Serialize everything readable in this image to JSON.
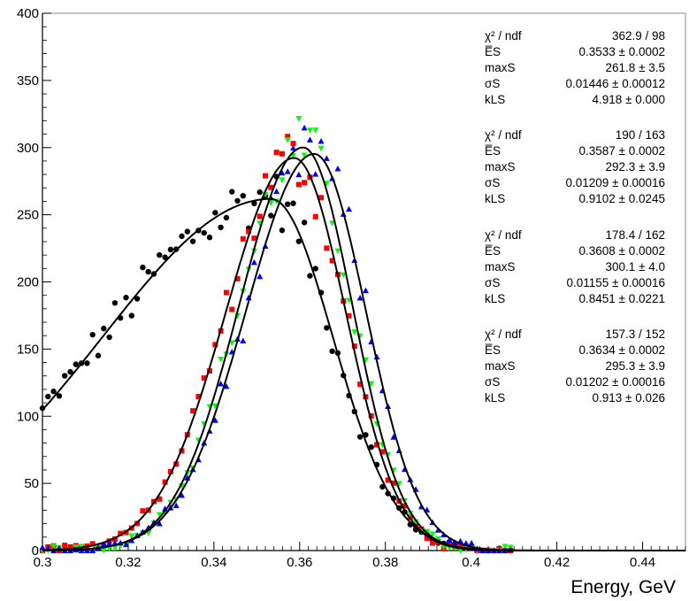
{
  "chart_data": {
    "type": "scatter",
    "xlabel": "Energy, GeV",
    "ylabel": "",
    "xlim": [
      0.3,
      0.45
    ],
    "ylim": [
      0,
      400
    ],
    "x_ticks": [
      "0.3",
      "0.32",
      "0.34",
      "0.36",
      "0.38",
      "0.4",
      "0.42",
      "0.44"
    ],
    "y_ticks": [
      "0",
      "50",
      "100",
      "150",
      "200",
      "250",
      "300",
      "350",
      "400"
    ],
    "grid": false,
    "legend": "none",
    "series": [
      {
        "color": "#000000",
        "marker": "circle",
        "fit": {
          "mean": 0.3533,
          "max": 261.8,
          "sigma": 0.01446,
          "kL": 4.918
        },
        "stats": [
          {
            "label": "χ² / ndf",
            "value": "362.9 / 98"
          },
          {
            "label": "E̅S",
            "value": "0.3533 ± 0.0002"
          },
          {
            "label": "maxS",
            "value": "261.8 ± 3.5"
          },
          {
            "label": "σS",
            "value": "0.01446 ± 0.00012"
          },
          {
            "label": "kLS",
            "value": "4.918 ± 0.000"
          }
        ]
      },
      {
        "color": "#ff0000",
        "marker": "square",
        "fit": {
          "mean": 0.3587,
          "max": 292.3,
          "sigma": 0.01209,
          "kL": 0.9102
        },
        "stats": [
          {
            "label": "χ² / ndf",
            "value": "190 / 163"
          },
          {
            "label": "E̅S",
            "value": "0.3587 ± 0.0002"
          },
          {
            "label": "maxS",
            "value": "292.3 ± 3.9"
          },
          {
            "label": "σS",
            "value": "0.01209 ± 0.00016"
          },
          {
            "label": "kLS",
            "value": "0.9102 ± 0.0245"
          }
        ]
      },
      {
        "color": "#00ff00",
        "marker": "triangle-down",
        "fit": {
          "mean": 0.3608,
          "max": 300.1,
          "sigma": 0.01155,
          "kL": 0.8451
        },
        "stats": [
          {
            "label": "χ² / ndf",
            "value": "178.4 / 162"
          },
          {
            "label": "E̅S",
            "value": "0.3608 ± 0.0002"
          },
          {
            "label": "maxS",
            "value": "300.1 ± 4.0"
          },
          {
            "label": "σS",
            "value": "0.01155 ± 0.00016"
          },
          {
            "label": "kLS",
            "value": "0.8451 ± 0.0221"
          }
        ]
      },
      {
        "color": "#0000ff",
        "marker": "triangle-up",
        "fit": {
          "mean": 0.3634,
          "max": 295.3,
          "sigma": 0.01202,
          "kL": 0.913
        },
        "stats": [
          {
            "label": "χ² / ndf",
            "value": "157.3 / 152"
          },
          {
            "label": "E̅S",
            "value": "0.3634 ± 0.0002"
          },
          {
            "label": "maxS",
            "value": "295.3 ± 3.9"
          },
          {
            "label": "σS",
            "value": "0.01202 ± 0.00016"
          },
          {
            "label": "kLS",
            "value": "0.913 ± 0.026"
          }
        ]
      }
    ]
  }
}
